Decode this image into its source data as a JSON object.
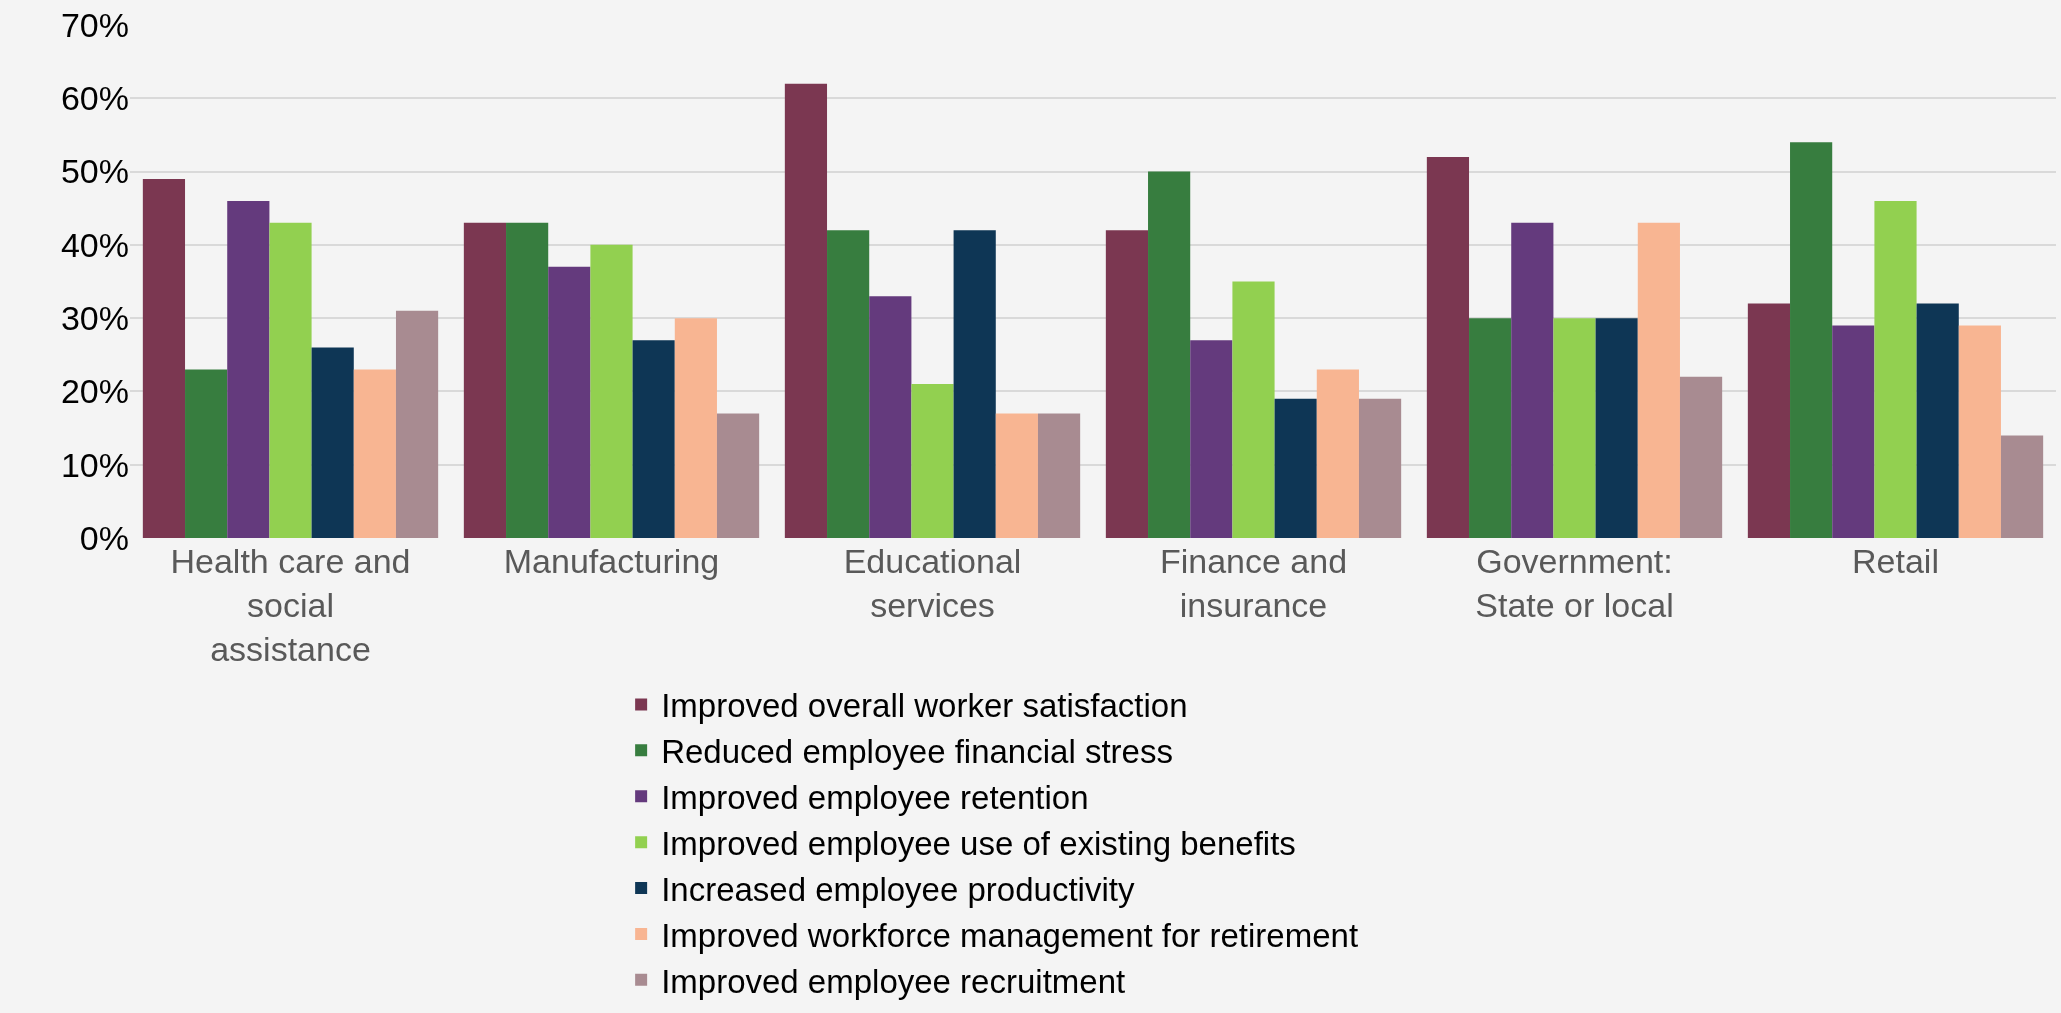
{
  "chart_data": {
    "type": "bar",
    "categories": [
      "Health care and social assistance",
      "Manufacturing",
      "Educational services",
      "Finance and insurance",
      "Government: State or local",
      "Retail"
    ],
    "series": [
      {
        "name": "Improved overall worker satisfaction",
        "color": "#7b3751",
        "values": [
          49,
          43,
          62,
          42,
          52,
          32
        ]
      },
      {
        "name": "Reduced employee financial stress",
        "color": "#377d3f",
        "values": [
          23,
          43,
          42,
          50,
          30,
          54
        ]
      },
      {
        "name": "Improved employee retention",
        "color": "#643a7d",
        "values": [
          46,
          37,
          33,
          27,
          43,
          29
        ]
      },
      {
        "name": "Improved employee use of existing benefits",
        "color": "#92d050",
        "values": [
          43,
          40,
          21,
          35,
          30,
          46
        ]
      },
      {
        "name": "Increased employee productivity",
        "color": "#0e3655",
        "values": [
          26,
          27,
          42,
          19,
          30,
          32
        ]
      },
      {
        "name": "Improved workforce management for retirement",
        "color": "#f8b592",
        "values": [
          23,
          30,
          17,
          23,
          43,
          29
        ]
      },
      {
        "name": "Improved employee recruitment",
        "color": "#a88b91",
        "values": [
          31,
          17,
          17,
          19,
          22,
          14
        ]
      }
    ],
    "ylim": [
      0,
      70
    ],
    "yticks": [
      {
        "value": 0,
        "label": "0%"
      },
      {
        "value": 10,
        "label": "10%"
      },
      {
        "value": 20,
        "label": "20%"
      },
      {
        "value": 30,
        "label": "30%"
      },
      {
        "value": 40,
        "label": "40%"
      },
      {
        "value": 50,
        "label": "50%"
      },
      {
        "value": 60,
        "label": "60%"
      },
      {
        "value": 70,
        "label": "70%"
      }
    ],
    "grid": "y",
    "legend": "bottom"
  }
}
